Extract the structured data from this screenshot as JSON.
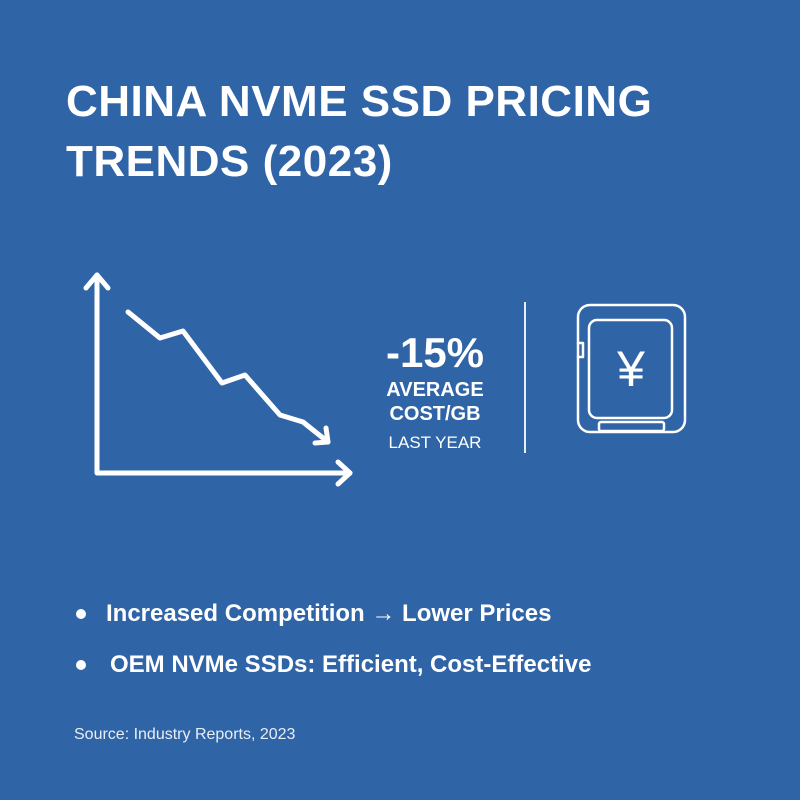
{
  "title": {
    "line1": "CHINA NVME SSD PRICING",
    "line2": "TRENDS (2023)"
  },
  "stat": {
    "value": "-15%",
    "metric_line1": "AVERAGE",
    "metric_line2": "COST/GB",
    "period": "LAST YEAR"
  },
  "icons": {
    "trend": "downward-trend-chart-icon",
    "ssd": "ssd-yen-icon",
    "currency_symbol": "¥"
  },
  "bullets": [
    {
      "text": "Increased Competition → Lower Prices"
    },
    {
      "text": "OEM NVMe SSDs: Efficient, Cost-Effective"
    }
  ],
  "source": "Source: Industry Reports, 2023",
  "colors": {
    "background": "#2f64a7",
    "foreground": "#ffffff"
  }
}
